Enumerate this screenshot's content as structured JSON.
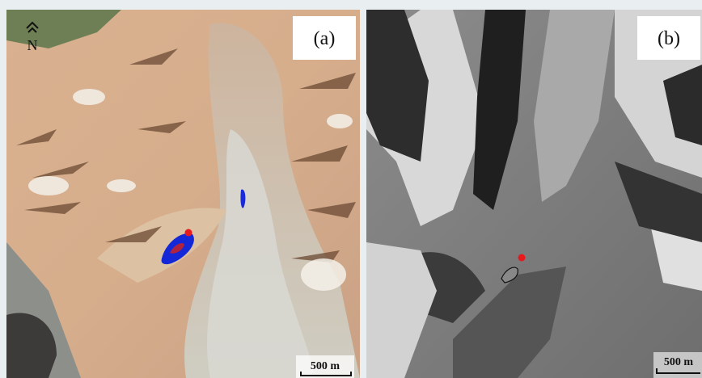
{
  "panels": [
    {
      "label": "(a)",
      "north": "N",
      "scale": "500 m"
    },
    {
      "label": "(b)",
      "scale": "500 m"
    }
  ]
}
